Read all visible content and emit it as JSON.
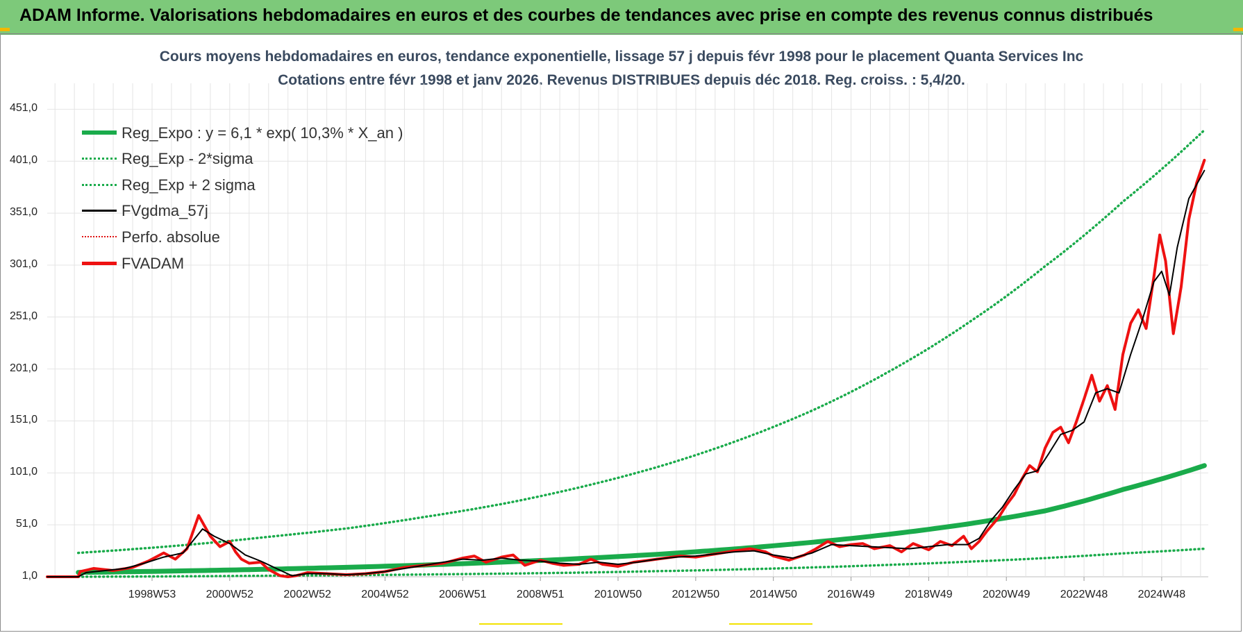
{
  "header": {
    "title": "ADAM Informe. Valorisations hebdomadaires en euros et des courbes de tendances avec prise en compte des revenus connus distribués"
  },
  "colors": {
    "banner": "#7dc97a",
    "reg_expo": "#1aab4b",
    "reg_band": "#1aab4b",
    "gdma": "#000000",
    "perfo": "#e01010",
    "fvadam": "#ee1111",
    "grid": "#e4e4e4"
  },
  "chart_data": {
    "type": "line",
    "title": "Cours moyens hebdomadaires en euros, tendance exponentielle, lissage 57 j depuis févr 1998 pour le placement Quanta Services Inc",
    "subtitle": "Cotations entre févr 1998 et janv 2026. Revenus DISTRIBUES depuis déc 2018. Reg. croiss. : 5,4/20.",
    "ylim": [
      1,
      476
    ],
    "xlim": [
      1996.3,
      2026.2
    ],
    "y_ticks": [
      "1,0",
      "51,0",
      "101,0",
      "151,0",
      "201,0",
      "251,0",
      "301,0",
      "351,0",
      "401,0",
      "451,0"
    ],
    "y_tick_values": [
      1,
      51,
      101,
      151,
      201,
      251,
      301,
      351,
      401,
      451
    ],
    "x_ticks": [
      "1998W53",
      "2000W52",
      "2002W52",
      "2004W52",
      "2006W51",
      "2008W51",
      "2010W50",
      "2012W50",
      "2014W50",
      "2016W49",
      "2018W49",
      "2020W49",
      "2022W48",
      "2024W48"
    ],
    "x_tick_years": [
      1999.0,
      2001.0,
      2003.0,
      2005.0,
      2007.0,
      2009.0,
      2011.0,
      2013.0,
      2015.0,
      2017.0,
      2019.0,
      2021.0,
      2023.0,
      2025.0
    ],
    "legend": [
      {
        "label": "Reg_Expo : y = 6,1 * exp( 10,3% *  X_an )",
        "style": "thick-solid",
        "color": "#1aab4b"
      },
      {
        "label": "Reg_Exp - 2*sigma",
        "style": "dotted",
        "color": "#1aab4b"
      },
      {
        "label": "Reg_Exp + 2 sigma",
        "style": "dotted",
        "color": "#1aab4b"
      },
      {
        "label": "FVgdma_57j",
        "style": "solid",
        "color": "#000000"
      },
      {
        "label": "Perfo. absolue",
        "style": "dotted",
        "color": "#e01010"
      },
      {
        "label": "FVADAM",
        "style": "thick-solid",
        "color": "#ee1111"
      }
    ],
    "series": [
      {
        "name": "Reg_Expo",
        "x": [
          1997.1,
          2000,
          2002,
          2004,
          2006,
          2008,
          2010,
          2012,
          2014,
          2016,
          2018,
          2020,
          2022,
          2024,
          2026.1
        ],
        "y": [
          5.2,
          6.8,
          8.3,
          10.1,
          12.3,
          15.1,
          18.5,
          22.6,
          27.8,
          34.2,
          42.0,
          51.8,
          64.5,
          85.0,
          108.0
        ]
      },
      {
        "name": "Reg_Exp + 2 sigma",
        "x": [
          1997.1,
          2000,
          2002,
          2004,
          2006,
          2008,
          2010,
          2012,
          2014,
          2016,
          2018,
          2020,
          2022,
          2024,
          2026.1
        ],
        "y": [
          24.0,
          32.0,
          39.5,
          47.5,
          58.5,
          71.0,
          87.0,
          106.5,
          131.0,
          161.0,
          199.0,
          245.0,
          300.0,
          362.0,
          431.0
        ]
      },
      {
        "name": "Reg_Exp - 2*sigma",
        "x": [
          1997.1,
          2000,
          2002,
          2004,
          2006,
          2008,
          2010,
          2012,
          2014,
          2016,
          2018,
          2020,
          2022,
          2024,
          2026.1
        ],
        "y": [
          1.0,
          1.5,
          2.0,
          2.5,
          3.2,
          4.0,
          5.0,
          6.4,
          8.0,
          10.0,
          12.5,
          15.5,
          19.0,
          23.5,
          28.0
        ]
      },
      {
        "name": "FVADAM",
        "x": [
          1996.3,
          1997.1,
          1997.15,
          1997.5,
          1998.0,
          1998.5,
          1998.9,
          1999.3,
          1999.6,
          1999.9,
          2000.2,
          2000.35,
          2000.5,
          2000.75,
          2001.0,
          2001.15,
          2001.3,
          2001.5,
          2001.8,
          2002.0,
          2002.3,
          2002.5,
          2002.7,
          2003.0,
          2003.5,
          2004.0,
          2004.5,
          2005.0,
          2005.5,
          2006.0,
          2006.5,
          2007.0,
          2007.3,
          2007.6,
          2008.0,
          2008.3,
          2008.6,
          2009.0,
          2009.3,
          2009.6,
          2010.0,
          2010.3,
          2010.6,
          2011.0,
          2011.4,
          2011.8,
          2012.2,
          2012.6,
          2013.0,
          2013.5,
          2014.0,
          2014.4,
          2014.8,
          2015.0,
          2015.4,
          2015.8,
          2016.1,
          2016.4,
          2016.7,
          2017.0,
          2017.3,
          2017.6,
          2018.0,
          2018.3,
          2018.6,
          2019.0,
          2019.3,
          2019.6,
          2019.9,
          2020.1,
          2020.3,
          2020.5,
          2020.8,
          2021.0,
          2021.2,
          2021.4,
          2021.6,
          2021.8,
          2022.0,
          2022.2,
          2022.4,
          2022.6,
          2022.8,
          2023.0,
          2023.2,
          2023.4,
          2023.6,
          2023.8,
          2024.0,
          2024.2,
          2024.4,
          2024.6,
          2024.7,
          2024.8,
          2024.95,
          2025.1,
          2025.3,
          2025.5,
          2025.7,
          2025.9,
          2026.1
        ],
        "y": [
          1,
          1,
          6,
          9,
          7,
          10,
          16,
          24,
          18,
          28,
          60,
          50,
          40,
          30,
          35,
          25,
          18,
          14,
          15,
          8,
          2,
          1,
          2,
          5,
          4,
          3,
          4,
          6,
          10,
          12,
          14,
          19,
          21,
          15,
          20,
          22,
          12,
          17,
          14,
          12,
          13,
          18,
          13,
          11,
          15,
          17,
          19,
          21,
          20,
          23,
          26,
          28,
          25,
          21,
          17,
          22,
          28,
          35,
          30,
          32,
          33,
          28,
          31,
          25,
          33,
          27,
          35,
          31,
          40,
          28,
          35,
          45,
          58,
          70,
          80,
          95,
          108,
          102,
          125,
          140,
          145,
          130,
          150,
          172,
          195,
          170,
          185,
          162,
          215,
          245,
          258,
          240,
          265,
          290,
          330,
          305,
          235,
          280,
          345,
          380,
          402
        ]
      },
      {
        "name": "FVgdma_57j",
        "x": [
          1996.3,
          1997.1,
          1997.3,
          1997.8,
          1998.3,
          1998.8,
          1999.3,
          1999.8,
          2000.3,
          2000.6,
          2001.0,
          2001.4,
          2001.8,
          2002.2,
          2002.6,
          2003.0,
          2003.5,
          2004.0,
          2004.5,
          2005.0,
          2005.5,
          2006.0,
          2006.5,
          2007.0,
          2007.5,
          2008.0,
          2008.5,
          2009.0,
          2009.5,
          2010.0,
          2010.5,
          2011.0,
          2011.5,
          2012.0,
          2012.5,
          2013.0,
          2013.5,
          2014.0,
          2014.5,
          2015.0,
          2015.5,
          2016.0,
          2016.5,
          2017.0,
          2017.5,
          2018.0,
          2018.5,
          2019.0,
          2019.5,
          2020.0,
          2020.3,
          2020.6,
          2020.9,
          2021.2,
          2021.5,
          2021.8,
          2022.1,
          2022.4,
          2022.7,
          2023.0,
          2023.3,
          2023.6,
          2023.9,
          2024.2,
          2024.5,
          2024.8,
          2025.0,
          2025.2,
          2025.4,
          2025.7,
          2026.1
        ],
        "y": [
          1,
          1,
          5,
          7,
          9,
          14,
          20,
          24,
          47,
          40,
          33,
          22,
          16,
          9,
          2,
          4,
          4,
          3,
          4,
          6,
          9,
          12,
          15,
          18,
          17,
          19,
          17,
          16,
          14,
          13,
          15,
          13,
          15,
          18,
          20,
          21,
          23,
          25,
          26,
          22,
          19,
          24,
          32,
          31,
          30,
          29,
          28,
          30,
          32,
          32,
          38,
          55,
          68,
          85,
          100,
          103,
          120,
          138,
          142,
          150,
          178,
          182,
          178,
          215,
          248,
          285,
          295,
          272,
          318,
          365,
          392
        ]
      }
    ]
  }
}
